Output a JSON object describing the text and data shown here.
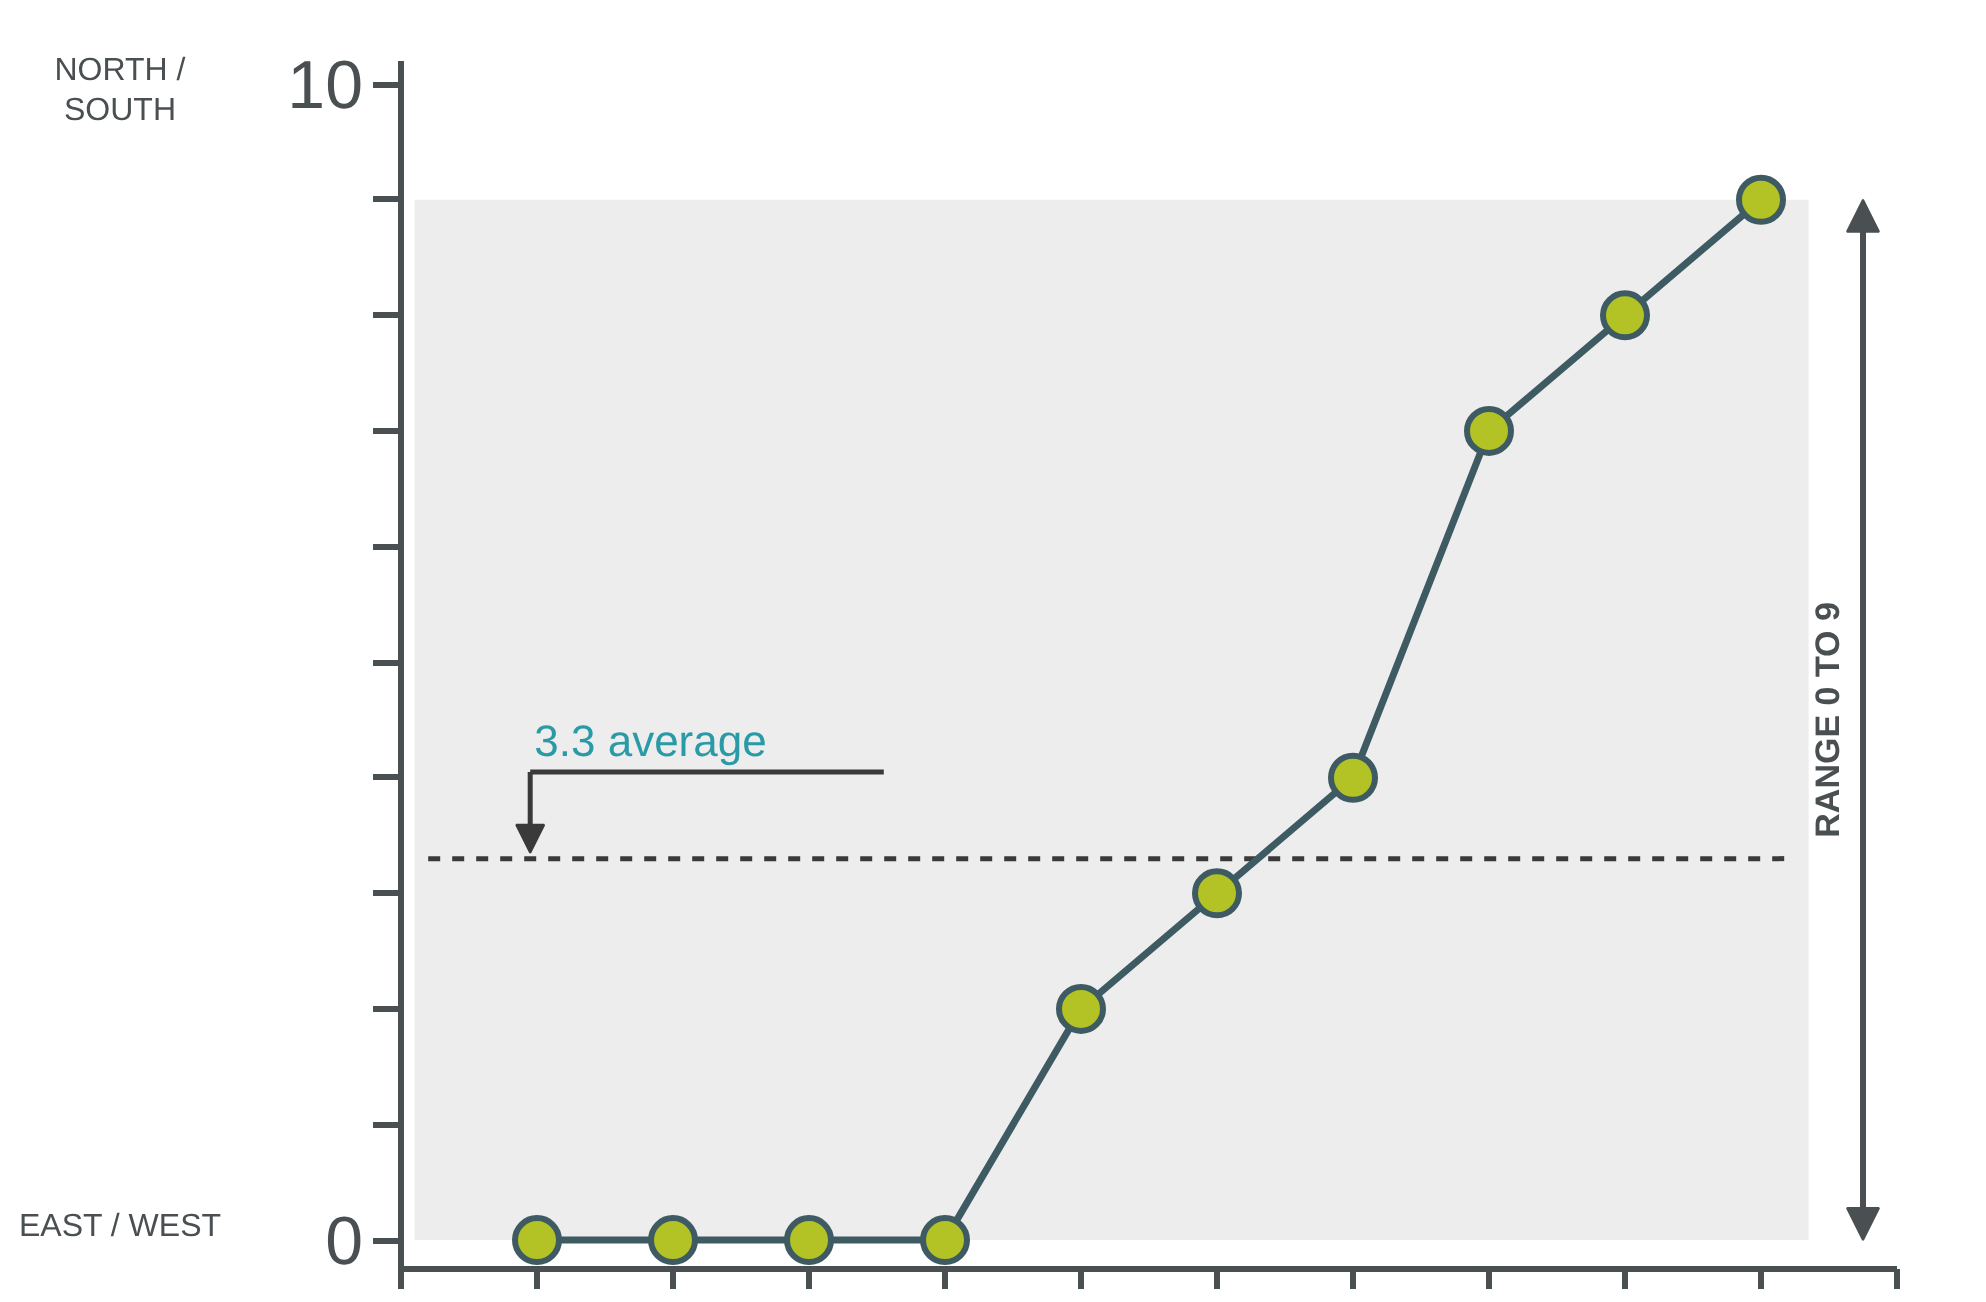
{
  "chart_data": {
    "type": "line",
    "categories": [
      null,
      null,
      null,
      null,
      null,
      null,
      null,
      null,
      null,
      null
    ],
    "series": [
      {
        "color": "#3e5a62",
        "values": [
          0,
          0,
          0,
          0,
          2,
          3,
          4,
          7,
          8,
          9
        ]
      }
    ],
    "marker": "circle",
    "line_style": "solid",
    "grid": false,
    "ylim": [
      -0.25,
      10.2
    ],
    "yticks": [
      0,
      {
        "value": 1,
        "label": null
      },
      {
        "value": 2,
        "label": null
      },
      {
        "value": 3,
        "label": null
      },
      {
        "value": 4,
        "label": null
      },
      {
        "value": 5,
        "label": null
      },
      {
        "value": 6,
        "label": null
      },
      {
        "value": 7,
        "label": null
      },
      {
        "value": 8,
        "label": null
      },
      {
        "value": 9,
        "label": null
      },
      10
    ],
    "tick_labels": "y",
    "ref_lines": [
      {
        "axis": "y",
        "value": 3.3,
        "label": "3.3 average",
        "color": "#3a3a3a",
        "line_style": "dashed"
      }
    ],
    "bands": [
      {
        "axis": "y",
        "from": 0,
        "to": 9,
        "label": "RANGE 0 TO 9",
        "color": "#ededed"
      }
    ],
    "annotations": [
      "NORTH / SOUTH",
      "EAST / WEST"
    ]
  }
}
